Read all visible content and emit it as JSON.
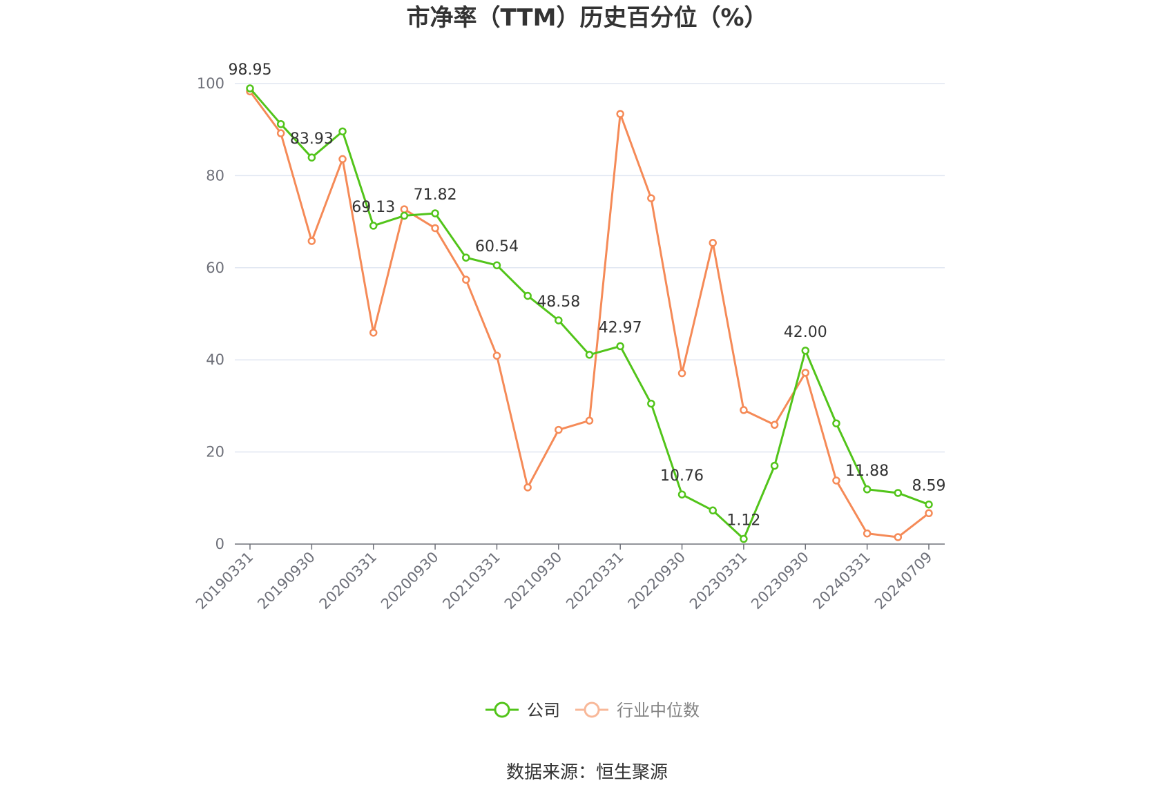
{
  "chart_data": {
    "type": "line",
    "title": "市净率（TTM）历史百分位（%）",
    "x": [
      "20190331",
      "20190630",
      "20190930",
      "20191231",
      "20200331",
      "20200630",
      "20200930",
      "20201231",
      "20210331",
      "20210630",
      "20210930",
      "20211231",
      "20220331",
      "20220630",
      "20220930",
      "20221231",
      "20230331",
      "20230630",
      "20230930",
      "20231231",
      "20240331",
      "20240630",
      "20240709"
    ],
    "x_tick_labels": [
      "20190331",
      "20190930",
      "20200331",
      "20200930",
      "20210331",
      "20210930",
      "20220331",
      "20220930",
      "20230331",
      "20230930",
      "20240331",
      "20240709"
    ],
    "series": [
      {
        "name": "公司",
        "color": "#52c41a",
        "values": [
          98.95,
          91.2,
          83.93,
          89.6,
          69.13,
          71.3,
          71.82,
          62.2,
          60.54,
          53.9,
          48.58,
          41.1,
          42.97,
          30.5,
          10.76,
          7.3,
          1.12,
          17.0,
          42.0,
          26.2,
          11.88,
          11.1,
          8.59
        ],
        "labels": [
          "98.95",
          "",
          "83.93",
          "",
          "69.13",
          "",
          "71.82",
          "",
          "60.54",
          "",
          "48.58",
          "",
          "42.97",
          "",
          "10.76",
          "",
          "1.12",
          "",
          "42.00",
          "",
          "11.88",
          "",
          "8.59"
        ]
      },
      {
        "name": "行业中位数",
        "color": "#f58a57",
        "values": [
          98.3,
          89.2,
          65.8,
          83.6,
          45.9,
          72.7,
          68.6,
          57.4,
          40.9,
          12.3,
          24.8,
          26.8,
          93.4,
          75.1,
          37.1,
          65.4,
          29.1,
          25.9,
          37.2,
          13.8,
          2.3,
          1.5,
          6.7
        ]
      }
    ],
    "ylim": [
      0,
      100
    ],
    "y_ticks": [
      0,
      20,
      40,
      60,
      80,
      100
    ],
    "grid": true,
    "legend_position": "bottom-center"
  },
  "source": "数据来源：恒生聚源"
}
